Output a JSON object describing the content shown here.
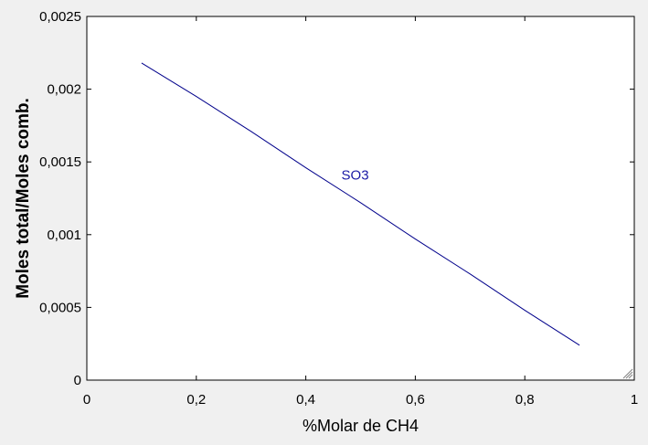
{
  "colors": {
    "background": "#f0f0f0",
    "plot_background": "#ffffff",
    "axis": "#000000",
    "series_line": "#00008b",
    "series_label": "#1a1aa6"
  },
  "chart_data": {
    "type": "line",
    "xlabel": "%Molar de CH4",
    "ylabel": "Moles total/Moles comb.",
    "xlim": [
      0,
      1
    ],
    "ylim": [
      0,
      0.0025
    ],
    "x_ticks": [
      0,
      0.2,
      0.4,
      0.6,
      0.8,
      1
    ],
    "x_tick_labels": [
      "0",
      "0,2",
      "0,4",
      "0,6",
      "0,8",
      "1"
    ],
    "y_ticks": [
      0,
      0.0005,
      0.001,
      0.0015,
      0.002,
      0.0025
    ],
    "y_tick_labels": [
      "0",
      "0,0005",
      "0,001",
      "0,0015",
      "0,002",
      "0,0025"
    ],
    "grid": false,
    "series": [
      {
        "name": "SO3",
        "x": [
          0.1,
          0.2,
          0.3,
          0.4,
          0.5,
          0.6,
          0.7,
          0.8,
          0.9
        ],
        "y": [
          0.00218,
          0.00195,
          0.00171,
          0.00146,
          0.00122,
          0.00097,
          0.00073,
          0.00048,
          0.00024
        ],
        "label_at": [
          0.47,
          0.00141
        ]
      }
    ]
  }
}
